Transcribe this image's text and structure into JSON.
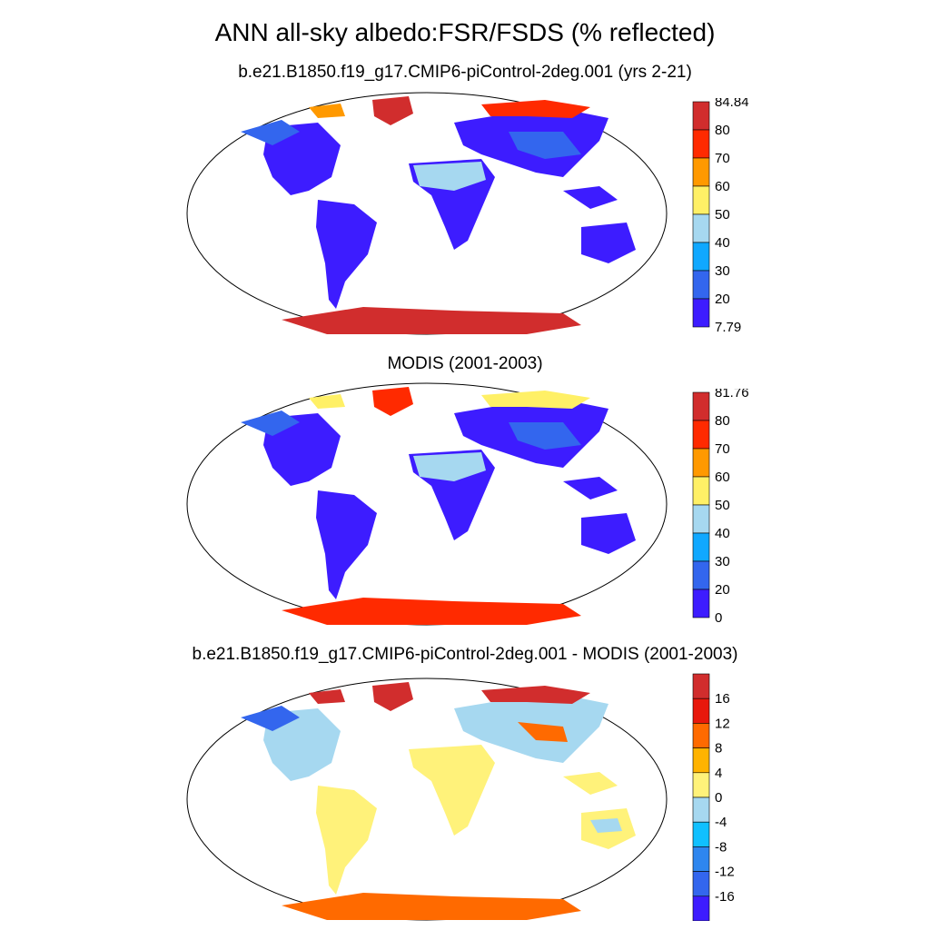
{
  "title": "ANN all-sky albedo:FSR/FSDS (% reflected)",
  "panels": [
    {
      "title": "b.e21.B1850.f19_g17.CMIP6-piControl-2deg.001 (yrs 2-21)",
      "colorbar": {
        "labels": [
          "84.84",
          "80",
          "70",
          "60",
          "50",
          "40",
          "30",
          "20",
          "7.79"
        ],
        "colors": [
          "#d12d2d",
          "#ff2a00",
          "#ff9900",
          "#fff066",
          "#a6d8f0",
          "#10a8ff",
          "#3366ee",
          "#3d1cff"
        ]
      }
    },
    {
      "title": "MODIS (2001-2003)",
      "colorbar": {
        "labels": [
          "81.76",
          "80",
          "70",
          "60",
          "50",
          "40",
          "30",
          "20",
          "0"
        ],
        "colors": [
          "#d12d2d",
          "#ff2a00",
          "#ff9900",
          "#fff066",
          "#a6d8f0",
          "#10a8ff",
          "#3366ee",
          "#3d1cff"
        ]
      }
    },
    {
      "title": "b.e21.B1850.f19_g17.CMIP6-piControl-2deg.001 - MODIS (2001-2003)",
      "colorbar": {
        "labels": [
          "16",
          "12",
          "8",
          "4",
          "0",
          "-4",
          "-8",
          "-12",
          "-16"
        ],
        "colors": [
          "#d12d2d",
          "#e8180c",
          "#ff6a00",
          "#ffb300",
          "#fff27a",
          "#a6d8f0",
          "#10c0ff",
          "#2e86ef",
          "#3366ee",
          "#3d1cff"
        ]
      }
    }
  ]
}
